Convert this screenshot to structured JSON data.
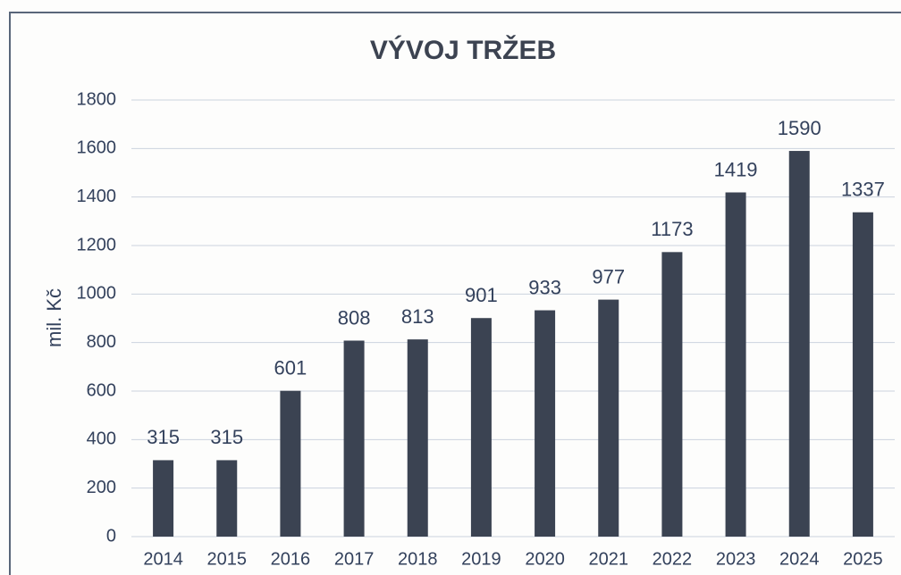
{
  "chart_data": {
    "type": "bar",
    "title": "VÝVOJ TRŽEB",
    "y_label": "mil. Kč",
    "categories": [
      "2014",
      "2015",
      "2016",
      "2017",
      "2018",
      "2019",
      "2020",
      "2021",
      "2022",
      "2023",
      "2024",
      "2025"
    ],
    "values": [
      315,
      315,
      601,
      808,
      813,
      901,
      933,
      977,
      1173,
      1419,
      1590,
      1337
    ],
    "color": "#3b4352",
    "ylim": [
      0,
      1800
    ],
    "yticks": [
      0,
      200,
      400,
      600,
      800,
      1000,
      1200,
      1400,
      1600,
      1800
    ],
    "grid": true
  }
}
